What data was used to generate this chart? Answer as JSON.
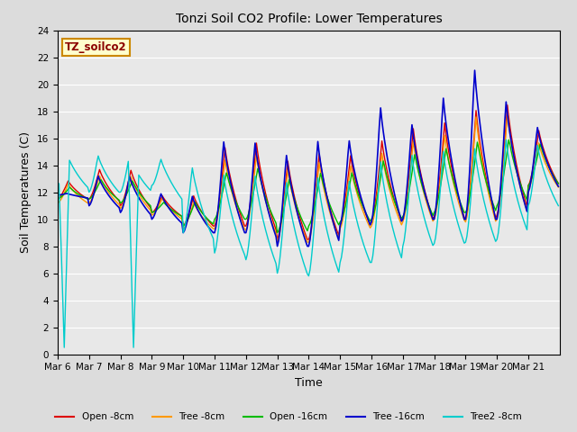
{
  "title": "Tonzi Soil CO2 Profile: Lower Temperatures",
  "xlabel": "Time",
  "ylabel": "Soil Temperatures (C)",
  "ylim": [
    0,
    24
  ],
  "yticks": [
    0,
    2,
    4,
    6,
    8,
    10,
    12,
    14,
    16,
    18,
    20,
    22,
    24
  ],
  "bg_color": "#dcdcdc",
  "plot_bg_color": "#e8e8e8",
  "legend_label": "TZ_soilco2",
  "series": {
    "open_8cm": {
      "label": "Open -8cm",
      "color": "#dd0000"
    },
    "tree_8cm": {
      "label": "Tree -8cm",
      "color": "#ff9900"
    },
    "open_16cm": {
      "label": "Open -16cm",
      "color": "#00bb00"
    },
    "tree_16cm": {
      "label": "Tree -16cm",
      "color": "#0000cc"
    },
    "tree2_8cm": {
      "label": "Tree2 -8cm",
      "color": "#00cccc"
    }
  },
  "x_tick_labels": [
    "Mar 6",
    "Mar 7",
    "Mar 8",
    "Mar 9",
    "Mar 10",
    "Mar 11",
    "Mar 12",
    "Mar 13",
    "Mar 14",
    "Mar 15",
    "Mar 16",
    "Mar 17",
    "Mar 18",
    "Mar 19",
    "Mar 20",
    "Mar 21"
  ]
}
